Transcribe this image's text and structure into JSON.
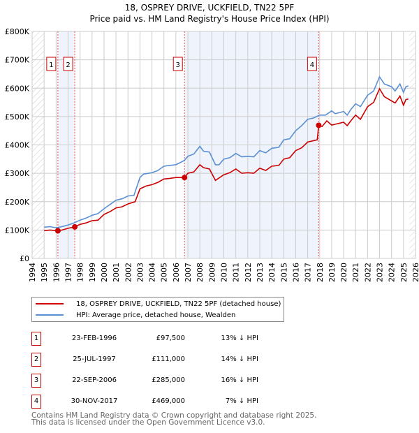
{
  "title": "18, OSPREY DRIVE, UCKFIELD, TN22 5PF",
  "subtitle": "Price paid vs. HM Land Registry's House Price Index (HPI)",
  "chart_data": {
    "type": "line",
    "title": "18, OSPREY DRIVE, UCKFIELD, TN22 5PF — Price paid vs. HM Land Registry's House Price Index (HPI)",
    "xlim": [
      1994,
      2026
    ],
    "ylim": [
      0,
      800000
    ],
    "x_ticks": [
      "1994",
      "1995",
      "1996",
      "1997",
      "1998",
      "1999",
      "2000",
      "2001",
      "2002",
      "2003",
      "2004",
      "2005",
      "2006",
      "2007",
      "2008",
      "2009",
      "2010",
      "2011",
      "2012",
      "2013",
      "2014",
      "2015",
      "2016",
      "2017",
      "2018",
      "2019",
      "2020",
      "2021",
      "2022",
      "2023",
      "2024",
      "2025",
      "2026"
    ],
    "y_ticks": [
      {
        "v": 0,
        "label": "£0"
      },
      {
        "v": 100000,
        "label": "£100K"
      },
      {
        "v": 200000,
        "label": "£200K"
      },
      {
        "v": 300000,
        "label": "£300K"
      },
      {
        "v": 400000,
        "label": "£400K"
      },
      {
        "v": 500000,
        "label": "£500K"
      },
      {
        "v": 600000,
        "label": "£600K"
      },
      {
        "v": 700000,
        "label": "£700K"
      },
      {
        "v": 800000,
        "label": "£800K"
      }
    ],
    "series": [
      {
        "name": "HPI: Average price, detached house, Wealden",
        "color": "#5b8fd4",
        "x": [
          1995,
          1995.5,
          1996,
          1996.5,
          1997,
          1997.5,
          1998,
          1998.5,
          1999,
          1999.5,
          2000,
          2000.5,
          2001,
          2001.5,
          2002,
          2002.5,
          2003,
          2003.3,
          2004,
          2004.5,
          2005,
          2005.5,
          2006,
          2006.7,
          2007,
          2007.5,
          2008,
          2008.3,
          2008.8,
          2009.3,
          2009.6,
          2010,
          2010.5,
          2011,
          2011.5,
          2012,
          2012.5,
          2013,
          2013.5,
          2014,
          2014.6,
          2015,
          2015.5,
          2016,
          2016.5,
          2017,
          2017.5,
          2018,
          2018.5,
          2019,
          2019.3,
          2020,
          2020.3,
          2020.6,
          2021,
          2021.4,
          2022,
          2022.5,
          2023,
          2023.4,
          2024,
          2024.3,
          2024.7,
          2025,
          2025.2,
          2025.4
        ],
        "y": [
          110,
          112,
          108,
          112,
          118,
          125,
          135,
          142,
          152,
          158,
          175,
          190,
          205,
          210,
          220,
          222,
          285,
          297,
          302,
          310,
          325,
          328,
          330,
          345,
          360,
          368,
          395,
          378,
          375,
          330,
          330,
          350,
          355,
          370,
          358,
          360,
          358,
          380,
          372,
          388,
          392,
          418,
          422,
          450,
          468,
          490,
          495,
          505,
          505,
          520,
          510,
          518,
          505,
          525,
          545,
          535,
          575,
          590,
          640,
          615,
          605,
          590,
          615,
          585,
          605,
          608
        ]
      },
      {
        "name": "18, OSPREY DRIVE, UCKFIELD, TN22 5PF (detached house)",
        "color": "#cc0000",
        "x": [
          1995,
          1995.5,
          1996.15,
          1996.5,
          1997,
          1997.56,
          1998,
          1998.5,
          1999,
          1999.5,
          2000,
          2000.5,
          2001,
          2001.5,
          2002,
          2002.6,
          2003,
          2003.5,
          2004,
          2004.5,
          2005,
          2005.5,
          2006,
          2006.72,
          2007,
          2007.5,
          2008,
          2008.3,
          2008.8,
          2009.3,
          2010,
          2010.5,
          2011,
          2011.5,
          2012,
          2012.5,
          2013,
          2013.5,
          2014,
          2014.6,
          2015,
          2015.5,
          2016,
          2016.5,
          2017,
          2017.8,
          2017.92,
          2018.2,
          2018.6,
          2019,
          2020,
          2020.3,
          2020.6,
          2021,
          2021.4,
          2022,
          2022.5,
          2023,
          2023.4,
          2024,
          2024.3,
          2024.7,
          2025,
          2025.2,
          2025.4
        ],
        "y": [
          98,
          100,
          97.5,
          100,
          106,
          111,
          120,
          125,
          133,
          135,
          155,
          165,
          178,
          182,
          192,
          200,
          245,
          255,
          260,
          268,
          280,
          282,
          285,
          285,
          300,
          305,
          330,
          320,
          315,
          275,
          295,
          302,
          315,
          300,
          302,
          300,
          318,
          310,
          325,
          328,
          350,
          355,
          380,
          390,
          410,
          418,
          469,
          465,
          485,
          470,
          480,
          468,
          485,
          505,
          490,
          535,
          550,
          598,
          570,
          555,
          548,
          572,
          540,
          560,
          562
        ]
      }
    ],
    "y_units": "thousands GBP",
    "sales": [
      {
        "n": "1",
        "x": 1996.15,
        "price": 97500,
        "date": "23-FEB-1996",
        "price_label": "£97,500",
        "delta": "13% ↓ HPI"
      },
      {
        "n": "2",
        "x": 1997.56,
        "price": 111000,
        "date": "25-JUL-1997",
        "price_label": "£111,000",
        "delta": "14% ↓ HPI"
      },
      {
        "n": "3",
        "x": 2006.72,
        "price": 285000,
        "date": "22-SEP-2006",
        "price_label": "£285,000",
        "delta": "16% ↓ HPI"
      },
      {
        "n": "4",
        "x": 2017.92,
        "price": 469000,
        "date": "30-NOV-2017",
        "price_label": "£469,000",
        "delta": "7% ↓ HPI"
      }
    ],
    "shaded_ranges": [
      [
        1996.15,
        1997.56
      ],
      [
        2006.72,
        2017.92
      ]
    ],
    "hatched_ranges": [
      [
        1994,
        1995
      ],
      [
        2025.5,
        2026
      ]
    ],
    "grid": true,
    "legend": "bottom"
  },
  "legend": {
    "property": "18, OSPREY DRIVE, UCKFIELD, TN22 5PF (detached house)",
    "hpi": "HPI: Average price, detached house, Wealden"
  },
  "footer": {
    "line1": "Contains HM Land Registry data © Crown copyright and database right 2025.",
    "line2": "This data is licensed under the Open Government Licence v3.0."
  }
}
